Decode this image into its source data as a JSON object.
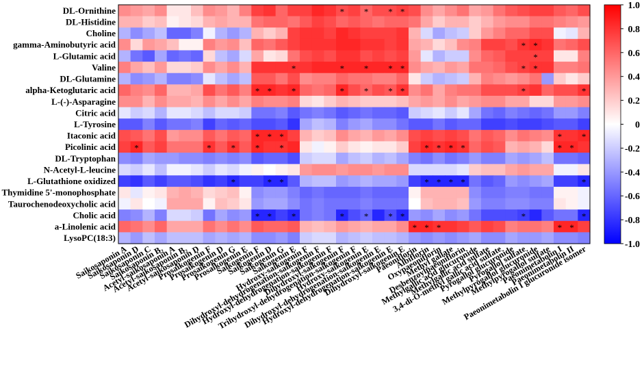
{
  "chart_data": {
    "type": "heatmap",
    "title": "",
    "colorscale": {
      "low": "#0000ff",
      "mid": "#ffffff",
      "high": "#ff0000"
    },
    "zlim": [
      -1.0,
      1.0
    ],
    "colorbar_ticks": [
      "1.0",
      "0.8",
      "0.6",
      "0.4",
      "0.2",
      "0",
      "-0.2",
      "-0.4",
      "-0.6",
      "-0.8",
      "-1.0"
    ],
    "rows": [
      "DL-Ornithine",
      "DL-Histidine",
      "Choline",
      "gamma-Aminobutyric acid",
      "L-Glutamic acid",
      "Valine",
      "DL-Glutamine",
      "alpha-Ketoglutaric acid",
      "L-(-)-Asparagine",
      "Citric acid",
      "L-Tyrosine",
      "Itaconic acid",
      "Picolinic acid",
      "DL-Tryptophan",
      "N-Acetyl-L-leucine",
      "L-Glutathione oxidized",
      "Thymidine 5'-monophosphate",
      "Taurochenodeoxycholic acid",
      "Cholic acid",
      "a-Linolenic acid",
      "LysoPC(18:3)"
    ],
    "columns": [
      "Saikosaponin A",
      "Saikosaponin D",
      "Saikosaponin C",
      "Saikosaponin B₂",
      "Acetyl-saikosaponin A",
      "Acetyl-saikosaponin B₂",
      "Acetyl-saikosaponin D",
      "Prosaikogenin F",
      "Prosaikogenin D",
      "Prosaikogenin G",
      "Prosaikogenin E",
      "Saikogenin F",
      "Saikogenin D",
      "Saikogenin G",
      "Saikogenin E",
      "Hydroxy-saikogenin F",
      "Dihydroxyl-dehydrogenation-saikogenin F",
      "Hydroxyl-dehydrogenation-saikogenin F",
      "Dihydroxyl-saikogenin F",
      "Trihydroxyl-dehydrogenation-saikogenin F",
      "Hydroxy-saikogenin E",
      "Dihydroxyl-dehydrogenation-saikogenin E",
      "Hydroxyl-dehydrogenation-saikogenin E",
      "Dihydroxyl-saikogenin E",
      "Paeoniflorin",
      "Albiflorin",
      "Oxypaeoniflorin",
      "Methyl gallate",
      "Desbenzoylpaeoniflorin",
      "Methylgallic acid glucuronide",
      "Methylgallic acid sulfate",
      "3,4-di-O-methyl gallic acid sulfate",
      "Pyrogallol glucuronide",
      "Pyrogallol sulfate",
      "Methylpyrogallol glucuronide",
      "Methylpyrogallol sulfate",
      "Paeonimetabolin I",
      "Paeonimetabolin II",
      "Paeonimetabolin I glucuronide isomer"
    ],
    "values": [
      [
        0.45,
        0.4,
        0.35,
        0.45,
        0.1,
        0.1,
        0.25,
        0.45,
        0.4,
        0.3,
        0.5,
        0.75,
        0.8,
        0.6,
        0.75,
        0.75,
        0.85,
        0.8,
        0.7,
        0.75,
        0.6,
        0.7,
        0.7,
        0.75,
        0.7,
        0.45,
        0.35,
        0.45,
        0.55,
        0.35,
        0.4,
        0.55,
        0.65,
        0.7,
        0.75,
        0.75,
        0.65,
        0.6,
        0.7
      ],
      [
        0.3,
        0.3,
        0.2,
        0.25,
        0.05,
        0.1,
        0.15,
        0.3,
        0.35,
        0.3,
        0.3,
        0.55,
        0.6,
        0.6,
        0.55,
        0.65,
        0.75,
        0.7,
        0.6,
        0.65,
        0.6,
        0.55,
        0.6,
        0.6,
        0.55,
        0.35,
        0.2,
        0.3,
        0.3,
        0.2,
        0.3,
        0.4,
        0.45,
        0.45,
        0.55,
        0.55,
        0.5,
        0.45,
        0.4
      ],
      [
        -0.3,
        -0.45,
        -0.35,
        -0.25,
        -0.6,
        -0.6,
        -0.5,
        -0.05,
        -0.3,
        -0.4,
        -0.3,
        0.3,
        0.2,
        0.3,
        0.75,
        0.8,
        0.8,
        0.75,
        0.85,
        0.8,
        0.75,
        0.75,
        0.75,
        0.8,
        0.3,
        -0.15,
        -0.35,
        -0.25,
        -0.2,
        0.2,
        0.4,
        0.5,
        0.6,
        0.6,
        0.7,
        0.7,
        -0.05,
        -0.1,
        0.3
      ],
      [
        0.45,
        0.15,
        0.4,
        0.35,
        0.25,
        0.05,
        0.05,
        0.5,
        0.4,
        0.45,
        0.25,
        0.6,
        0.55,
        0.65,
        0.75,
        0.8,
        0.8,
        0.8,
        0.85,
        0.85,
        0.8,
        0.8,
        0.75,
        0.8,
        0.35,
        0.3,
        0.15,
        0.25,
        0.45,
        0.5,
        0.75,
        0.75,
        0.7,
        0.8,
        0.85,
        0.8,
        0.55,
        0.6,
        0.7
      ],
      [
        -0.3,
        -0.55,
        -0.65,
        -0.35,
        -0.6,
        -0.55,
        -0.6,
        0.15,
        -0.25,
        -0.35,
        -0.15,
        0.35,
        0.1,
        0.15,
        0.55,
        0.7,
        0.75,
        0.7,
        0.8,
        0.8,
        0.7,
        0.75,
        0.7,
        0.75,
        0.4,
        -0.1,
        -0.3,
        -0.2,
        -0.2,
        0.45,
        0.6,
        0.65,
        0.75,
        0.75,
        0.75,
        0.75,
        0.1,
        0.1,
        0.5
      ],
      [
        0.5,
        0.35,
        0.25,
        0.4,
        0.15,
        0.15,
        0.2,
        0.45,
        0.35,
        0.45,
        0.3,
        0.8,
        0.8,
        0.8,
        0.8,
        0.8,
        0.85,
        0.85,
        0.85,
        0.85,
        0.85,
        0.85,
        0.85,
        0.85,
        0.45,
        0.35,
        0.3,
        0.4,
        0.35,
        0.55,
        0.55,
        0.6,
        0.7,
        0.75,
        0.8,
        0.8,
        0.5,
        0.5,
        0.55
      ],
      [
        -0.3,
        -0.45,
        -0.4,
        -0.3,
        -0.5,
        -0.5,
        -0.45,
        -0.1,
        -0.25,
        -0.35,
        -0.25,
        0.65,
        0.65,
        0.55,
        0.7,
        0.45,
        0.5,
        0.5,
        0.6,
        0.55,
        0.55,
        0.5,
        0.5,
        0.6,
        0.1,
        -0.2,
        -0.3,
        -0.25,
        -0.2,
        0.3,
        0.5,
        0.45,
        0.4,
        0.45,
        0.55,
        -0.4,
        0.2,
        0.1,
        0.2
      ],
      [
        0.6,
        0.5,
        0.45,
        0.6,
        0.3,
        0.3,
        0.35,
        0.7,
        0.55,
        0.65,
        0.5,
        0.85,
        0.85,
        0.8,
        0.85,
        0.6,
        0.55,
        0.6,
        0.85,
        0.7,
        0.6,
        0.7,
        0.65,
        0.8,
        0.45,
        0.55,
        0.35,
        0.5,
        0.55,
        0.55,
        0.7,
        0.7,
        0.7,
        0.75,
        0.8,
        0.6,
        0.7,
        0.7,
        0.8
      ],
      [
        0.45,
        0.45,
        0.3,
        0.45,
        0.35,
        0.35,
        0.3,
        0.45,
        0.35,
        0.45,
        0.35,
        0.5,
        0.45,
        0.45,
        0.5,
        0.15,
        0.1,
        0.2,
        0.3,
        0.25,
        0.2,
        0.2,
        0.2,
        0.25,
        0.35,
        0.4,
        0.35,
        0.45,
        0.35,
        0.4,
        0.45,
        0.45,
        0.35,
        0.35,
        0.15,
        0.15,
        0.4,
        0.4,
        0.45
      ],
      [
        -0.1,
        -0.2,
        -0.15,
        -0.3,
        -0.1,
        -0.1,
        -0.15,
        -0.25,
        -0.15,
        -0.15,
        -0.2,
        -0.55,
        -0.55,
        -0.5,
        -0.65,
        -0.55,
        -0.5,
        -0.55,
        -0.65,
        -0.6,
        -0.55,
        -0.6,
        -0.6,
        -0.65,
        -0.2,
        -0.15,
        -0.1,
        -0.2,
        -0.1,
        -0.35,
        -0.55,
        -0.6,
        -0.5,
        -0.55,
        -0.6,
        -0.55,
        -0.4,
        -0.4,
        -0.5
      ],
      [
        -0.65,
        -0.65,
        -0.5,
        -0.65,
        -0.55,
        -0.55,
        -0.5,
        -0.75,
        -0.6,
        -0.65,
        -0.6,
        -0.7,
        -0.7,
        -0.65,
        -0.8,
        -0.35,
        -0.25,
        -0.3,
        -0.5,
        -0.4,
        -0.35,
        -0.45,
        -0.45,
        -0.55,
        -0.65,
        -0.65,
        -0.55,
        -0.65,
        -0.6,
        -0.6,
        -0.75,
        -0.75,
        -0.7,
        -0.75,
        -0.75,
        -0.7,
        -0.65,
        -0.65,
        -0.75
      ],
      [
        0.7,
        0.65,
        0.55,
        0.7,
        0.4,
        0.45,
        0.45,
        0.65,
        0.55,
        0.65,
        0.6,
        0.85,
        0.85,
        0.85,
        0.75,
        0.3,
        0.2,
        0.25,
        0.45,
        0.35,
        0.3,
        0.4,
        0.35,
        0.45,
        0.7,
        0.75,
        0.7,
        0.75,
        0.7,
        0.55,
        0.65,
        0.6,
        0.45,
        0.55,
        0.5,
        0.45,
        0.8,
        0.8,
        0.85
      ],
      [
        0.75,
        0.85,
        0.65,
        0.75,
        0.55,
        0.55,
        0.55,
        0.8,
        0.65,
        0.8,
        0.65,
        0.85,
        0.8,
        0.8,
        0.85,
        0.1,
        -0.05,
        0.05,
        0.2,
        0.1,
        0.05,
        0.1,
        0.1,
        0.2,
        0.75,
        0.85,
        0.8,
        0.85,
        0.8,
        0.6,
        0.7,
        0.65,
        0.3,
        0.35,
        0.3,
        0.15,
        0.85,
        0.85,
        0.8
      ],
      [
        -0.45,
        -0.5,
        -0.35,
        -0.4,
        -0.4,
        -0.45,
        -0.45,
        -0.5,
        -0.45,
        -0.5,
        -0.45,
        -0.65,
        -0.6,
        -0.6,
        -0.7,
        -0.2,
        -0.15,
        -0.15,
        -0.35,
        -0.25,
        -0.2,
        -0.3,
        -0.25,
        -0.35,
        -0.5,
        -0.55,
        -0.45,
        -0.55,
        -0.5,
        -0.4,
        -0.5,
        -0.5,
        -0.35,
        -0.4,
        -0.35,
        -0.25,
        -0.55,
        -0.55,
        -0.6
      ],
      [
        -0.15,
        -0.2,
        -0.1,
        -0.25,
        -0.05,
        -0.05,
        -0.1,
        -0.2,
        -0.1,
        -0.15,
        -0.05,
        0.05,
        0.0,
        0.05,
        0.1,
        0.4,
        0.45,
        0.45,
        0.4,
        0.45,
        0.45,
        0.4,
        0.45,
        0.45,
        -0.15,
        -0.15,
        -0.15,
        -0.15,
        -0.1,
        0.2,
        0.25,
        0.25,
        0.35,
        0.4,
        0.35,
        0.35,
        -0.05,
        -0.05,
        0.1
      ],
      [
        -0.75,
        -0.8,
        -0.65,
        -0.75,
        -0.65,
        -0.65,
        -0.7,
        -0.8,
        -0.75,
        -0.85,
        -0.75,
        -0.75,
        -0.85,
        -0.85,
        -0.65,
        -0.3,
        -0.25,
        -0.25,
        -0.4,
        -0.35,
        -0.3,
        -0.35,
        -0.35,
        -0.4,
        -0.75,
        -0.85,
        -0.85,
        -0.85,
        -0.85,
        -0.55,
        -0.65,
        -0.6,
        -0.4,
        -0.45,
        -0.4,
        -0.35,
        -0.75,
        -0.75,
        -0.85
      ],
      [
        0.1,
        -0.1,
        0.05,
        0.1,
        0.3,
        0.35,
        0.3,
        0.15,
        0.2,
        0.25,
        0.05,
        -0.45,
        -0.4,
        -0.4,
        -0.5,
        -0.6,
        -0.55,
        -0.6,
        -0.6,
        -0.6,
        -0.55,
        -0.6,
        -0.6,
        -0.6,
        0.05,
        0.3,
        0.3,
        0.3,
        0.3,
        -0.45,
        -0.55,
        -0.55,
        -0.5,
        -0.5,
        -0.55,
        -0.55,
        0.05,
        0.05,
        -0.05
      ],
      [
        -0.05,
        0.1,
        0.0,
        -0.05,
        0.35,
        0.35,
        0.35,
        0.05,
        0.25,
        0.2,
        0.1,
        -0.4,
        -0.35,
        -0.35,
        -0.45,
        -0.55,
        -0.5,
        -0.55,
        -0.55,
        -0.55,
        -0.5,
        -0.55,
        -0.55,
        -0.55,
        0.0,
        0.25,
        0.3,
        0.3,
        0.25,
        -0.4,
        -0.5,
        -0.5,
        -0.45,
        -0.45,
        -0.5,
        -0.5,
        0.1,
        0.05,
        -0.05
      ],
      [
        -0.5,
        -0.45,
        -0.3,
        -0.5,
        -0.15,
        -0.15,
        -0.2,
        -0.55,
        -0.35,
        -0.45,
        -0.4,
        -0.85,
        -0.85,
        -0.75,
        -0.85,
        -0.55,
        -0.5,
        -0.55,
        -0.85,
        -0.7,
        -0.6,
        -0.85,
        -0.7,
        -0.85,
        -0.4,
        -0.45,
        -0.35,
        -0.45,
        -0.4,
        -0.55,
        -0.7,
        -0.7,
        -0.7,
        -0.75,
        -0.85,
        -0.65,
        -0.55,
        -0.55,
        -0.85
      ],
      [
        0.6,
        0.55,
        0.45,
        0.6,
        0.35,
        0.35,
        0.35,
        0.55,
        0.45,
        0.55,
        0.45,
        0.65,
        0.6,
        0.6,
        0.65,
        0.3,
        0.25,
        0.3,
        0.4,
        0.35,
        0.3,
        0.35,
        0.35,
        0.45,
        0.85,
        0.85,
        0.8,
        0.8,
        0.75,
        0.65,
        0.75,
        0.7,
        0.5,
        0.55,
        0.55,
        0.5,
        0.85,
        0.85,
        0.75
      ],
      [
        -0.3,
        -0.4,
        -0.25,
        -0.35,
        -0.25,
        -0.25,
        -0.25,
        -0.35,
        -0.3,
        -0.35,
        -0.3,
        -0.45,
        -0.45,
        -0.4,
        -0.5,
        -0.2,
        -0.15,
        -0.15,
        -0.3,
        -0.25,
        -0.2,
        -0.25,
        -0.25,
        -0.3,
        -0.4,
        -0.45,
        -0.4,
        -0.45,
        -0.4,
        -0.35,
        -0.45,
        -0.45,
        -0.35,
        -0.4,
        -0.4,
        -0.35,
        -0.45,
        -0.45,
        -0.5
      ]
    ],
    "significance_marker": "*",
    "significant_cells": [
      [
        0,
        18
      ],
      [
        0,
        20
      ],
      [
        0,
        22
      ],
      [
        0,
        23
      ],
      [
        3,
        33
      ],
      [
        3,
        34
      ],
      [
        4,
        34
      ],
      [
        5,
        14
      ],
      [
        5,
        18
      ],
      [
        5,
        20
      ],
      [
        5,
        22
      ],
      [
        5,
        23
      ],
      [
        5,
        33
      ],
      [
        5,
        34
      ],
      [
        7,
        11
      ],
      [
        7,
        12
      ],
      [
        7,
        14
      ],
      [
        7,
        18
      ],
      [
        7,
        20
      ],
      [
        7,
        22
      ],
      [
        7,
        23
      ],
      [
        7,
        33
      ],
      [
        7,
        38
      ],
      [
        11,
        11
      ],
      [
        11,
        12
      ],
      [
        11,
        13
      ],
      [
        11,
        36
      ],
      [
        11,
        38
      ],
      [
        12,
        1
      ],
      [
        12,
        7
      ],
      [
        12,
        9
      ],
      [
        12,
        11
      ],
      [
        12,
        13
      ],
      [
        12,
        25
      ],
      [
        12,
        26
      ],
      [
        12,
        27
      ],
      [
        12,
        28
      ],
      [
        12,
        36
      ],
      [
        12,
        37
      ],
      [
        15,
        9
      ],
      [
        15,
        12
      ],
      [
        15,
        13
      ],
      [
        15,
        25
      ],
      [
        15,
        26
      ],
      [
        15,
        27
      ],
      [
        15,
        28
      ],
      [
        15,
        38
      ],
      [
        18,
        11
      ],
      [
        18,
        12
      ],
      [
        18,
        14
      ],
      [
        18,
        18
      ],
      [
        18,
        20
      ],
      [
        18,
        22
      ],
      [
        18,
        23
      ],
      [
        18,
        33
      ],
      [
        18,
        38
      ],
      [
        19,
        24
      ],
      [
        19,
        25
      ],
      [
        19,
        26
      ],
      [
        19,
        36
      ],
      [
        19,
        37
      ]
    ]
  }
}
